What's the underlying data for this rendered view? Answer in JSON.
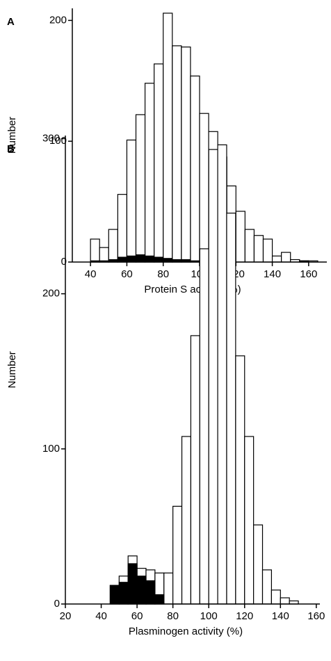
{
  "chart_data": [
    {
      "type": "histogram",
      "panel": "A",
      "xlabel": "Protein S activity (%)",
      "ylabel": "Number",
      "bins": [
        40,
        45,
        50,
        55,
        60,
        65,
        70,
        75,
        80,
        85,
        90,
        95,
        100,
        105,
        110,
        115,
        120,
        125,
        130,
        135,
        140,
        145,
        150,
        155,
        160,
        165
      ],
      "series": [
        {
          "color": "#ffffff",
          "values": [
            19,
            12,
            27,
            56,
            101,
            122,
            148,
            164,
            206,
            179,
            178,
            154,
            123,
            108,
            87,
            63,
            42,
            27,
            22,
            19,
            5,
            8,
            2,
            1,
            1
          ]
        },
        {
          "color": "#000000",
          "values": [
            1,
            1,
            2,
            4,
            5,
            6,
            5,
            4,
            3,
            2,
            2,
            1,
            1,
            1,
            0,
            0,
            0,
            0,
            0,
            0,
            0,
            0,
            0,
            1,
            0
          ]
        }
      ],
      "xlim": [
        30,
        170
      ],
      "xticks": [
        40,
        60,
        80,
        100,
        120,
        140,
        160
      ],
      "ylim": [
        0,
        210
      ],
      "yticks": [
        0,
        100,
        200
      ]
    },
    {
      "type": "histogram",
      "panel": "B",
      "xlabel": "Plasminogen activity (%)",
      "ylabel": "Number",
      "bins": [
        45,
        50,
        55,
        60,
        65,
        70,
        75,
        80,
        85,
        90,
        95,
        100,
        105,
        110,
        115,
        120,
        125,
        130,
        135,
        140,
        145,
        150
      ],
      "series": [
        {
          "color": "#ffffff",
          "values": [
            12,
            18,
            31,
            23,
            22,
            20,
            20,
            63,
            108,
            173,
            229,
            293,
            296,
            252,
            160,
            108,
            51,
            22,
            9,
            4,
            2
          ]
        },
        {
          "color": "#000000",
          "values": [
            12,
            14,
            26,
            18,
            15,
            6,
            0,
            0,
            0,
            0,
            0,
            0,
            0,
            0,
            0,
            0,
            0,
            0,
            0,
            0,
            0
          ]
        }
      ],
      "xlim": [
        20,
        162
      ],
      "xticks": [
        20,
        40,
        60,
        80,
        100,
        120,
        140,
        160
      ],
      "ylim": [
        0,
        302
      ],
      "yticks": [
        0,
        100,
        200,
        300
      ]
    }
  ]
}
